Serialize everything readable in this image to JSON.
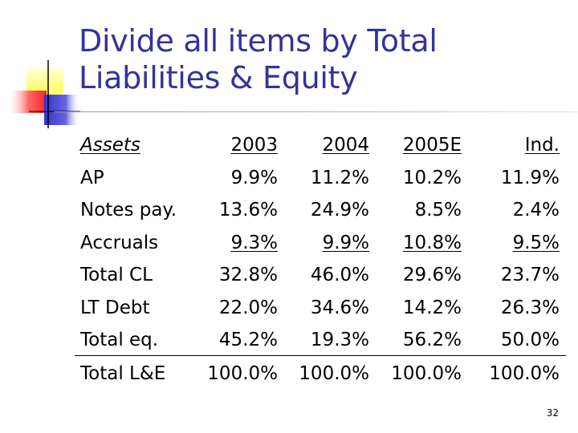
{
  "slide": {
    "title_line1": "Divide all items by Total",
    "title_line2": "Liabilities & Equity",
    "page_number": "32"
  },
  "table": {
    "header": [
      "Assets",
      "2003",
      "2004",
      "2005E",
      "Ind."
    ],
    "rows": [
      [
        "AP",
        "9.9%",
        "11.2%",
        "10.2%",
        "11.9%"
      ],
      [
        "Notes pay.",
        "13.6%",
        "24.9%",
        "8.5%",
        "2.4%"
      ],
      [
        "Accruals",
        "9.3%",
        "9.9%",
        "10.8%",
        "9.5%"
      ],
      [
        "Total CL",
        "32.8%",
        "46.0%",
        "29.6%",
        "23.7%"
      ],
      [
        "LT Debt",
        "22.0%",
        "34.6%",
        "14.2%",
        "26.3%"
      ],
      [
        "Total eq.",
        "45.2%",
        "19.3%",
        "56.2%",
        "50.0%"
      ],
      [
        "Total L&E",
        "100.0%",
        "100.0%",
        "100.0%",
        "100.0%"
      ]
    ]
  },
  "colors": {
    "title": "#333399",
    "logo_yellow": "#ffff66",
    "logo_red": "#ff3333",
    "logo_blue": "#3333cc"
  }
}
